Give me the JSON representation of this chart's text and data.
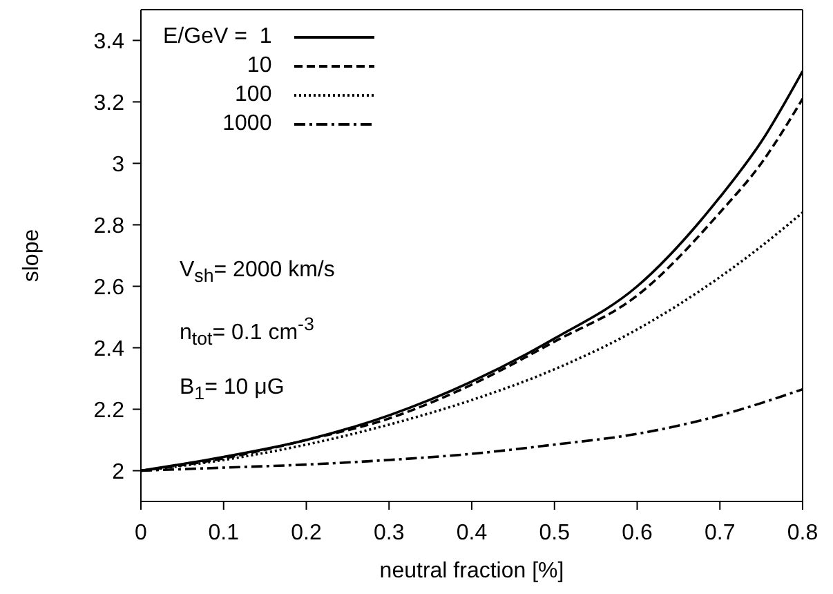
{
  "chart_data": {
    "type": "line",
    "xlabel": "neutral fraction [%]",
    "ylabel": "slope",
    "legend_title": "E/GeV =",
    "x": [
      0,
      0.1,
      0.2,
      0.3,
      0.4,
      0.5,
      0.6,
      0.7,
      0.75,
      0.8
    ],
    "series": [
      {
        "name": "1",
        "color": "#000000",
        "line_style": "solid",
        "values": [
          2.0,
          2.045,
          2.1,
          2.18,
          2.29,
          2.43,
          2.6,
          2.89,
          3.07,
          3.3
        ]
      },
      {
        "name": "10",
        "color": "#000000",
        "line_style": "dashed",
        "values": [
          2.0,
          2.04,
          2.1,
          2.17,
          2.28,
          2.42,
          2.57,
          2.84,
          3.0,
          3.21
        ]
      },
      {
        "name": "100",
        "color": "#000000",
        "line_style": "dotted",
        "values": [
          2.0,
          2.035,
          2.085,
          2.15,
          2.23,
          2.33,
          2.46,
          2.63,
          2.73,
          2.84
        ]
      },
      {
        "name": "1000",
        "color": "#000000",
        "line_style": "dashdot",
        "values": [
          2.0,
          2.01,
          2.02,
          2.035,
          2.055,
          2.085,
          2.12,
          2.18,
          2.22,
          2.265
        ]
      }
    ],
    "xlim": [
      0,
      0.8
    ],
    "xticks": [
      0,
      0.1,
      0.2,
      0.3,
      0.4,
      0.5,
      0.6,
      0.7,
      0.8
    ],
    "ylim": [
      1.9,
      3.5
    ],
    "yticks": [
      2,
      2.2,
      2.4,
      2.6,
      2.8,
      3,
      3.2,
      3.4
    ],
    "annotations": [
      "V$_{sh}$= 2000 km/s",
      "n$_{tot}$= 0.1 cm$^{-3}$",
      "B$_{1}$= 10 μG"
    ],
    "legend": "top left",
    "grid": false,
    "marker": "none"
  }
}
